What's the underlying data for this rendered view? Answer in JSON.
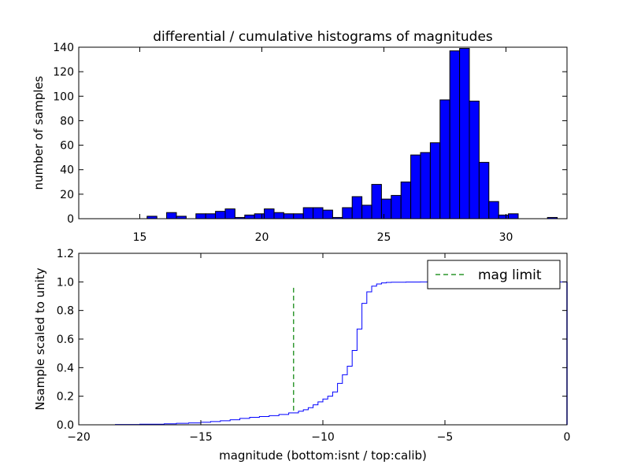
{
  "chart_data": [
    {
      "type": "bar",
      "subtype": "histogram",
      "title": "differential / cumulative histograms of magnitudes",
      "xlabel": "",
      "ylabel": "number of samples",
      "xlim": [
        12.5,
        32.5
      ],
      "ylim": [
        0,
        140
      ],
      "xticks": [
        15,
        20,
        25,
        30
      ],
      "xtick_labels": [
        "15",
        "20",
        "25",
        "30"
      ],
      "yticks": [
        0,
        20,
        40,
        60,
        80,
        100,
        120,
        140
      ],
      "ytick_labels": [
        "0",
        "20",
        "40",
        "60",
        "80",
        "100",
        "120",
        "140"
      ],
      "x_ticklabel_position": "bottom",
      "bar_color": "#0000ff",
      "bin_start": 12.5,
      "bin_width": 0.4,
      "values": [
        0,
        0,
        0,
        0,
        0,
        0,
        0,
        2,
        0,
        5,
        2,
        0,
        4,
        4,
        6,
        8,
        1,
        3,
        4,
        8,
        5,
        4,
        4,
        9,
        9,
        7,
        1,
        9,
        18,
        11,
        28,
        16,
        19,
        30,
        52,
        54,
        62,
        97,
        137,
        139,
        96,
        46,
        14,
        3,
        4,
        0,
        0,
        0,
        1
      ]
    },
    {
      "type": "line",
      "subtype": "cumulative step",
      "title": "",
      "xlabel": "magnitude (bottom:isnt / top:calib)",
      "ylabel": "Nsample scaled to unity",
      "xlim": [
        -20,
        0
      ],
      "ylim": [
        0,
        1.2
      ],
      "xticks": [
        -20,
        -15,
        -10,
        -5,
        0
      ],
      "xtick_labels": [
        "−20",
        "−15",
        "−10",
        "−5",
        "0"
      ],
      "yticks": [
        0,
        0.2,
        0.4,
        0.6,
        0.8,
        1.0,
        1.2
      ],
      "ytick_labels": [
        "0.0",
        "0.2",
        "0.4",
        "0.6",
        "0.8",
        "1.0",
        "1.2"
      ],
      "series": [
        {
          "color": "#0000ff",
          "step": true,
          "x": [
            -20,
            -18.5,
            -17.5,
            -16.5,
            -16,
            -15.5,
            -15,
            -14.6,
            -14.2,
            -13.8,
            -13.4,
            -13,
            -12.6,
            -12.2,
            -11.8,
            -11.4,
            -11.0,
            -10.8,
            -10.6,
            -10.4,
            -10.2,
            -10.0,
            -9.8,
            -9.6,
            -9.4,
            -9.2,
            -9.0,
            -8.8,
            -8.6,
            -8.4,
            -8.2,
            -8.0,
            -7.8,
            -7.6,
            -7.4,
            -7.2,
            -6.6,
            -6.0,
            -5.0,
            0
          ],
          "y": [
            0.0,
            0.002,
            0.004,
            0.007,
            0.01,
            0.013,
            0.018,
            0.023,
            0.028,
            0.035,
            0.045,
            0.052,
            0.058,
            0.064,
            0.072,
            0.083,
            0.095,
            0.105,
            0.12,
            0.14,
            0.16,
            0.18,
            0.2,
            0.23,
            0.29,
            0.35,
            0.41,
            0.52,
            0.67,
            0.85,
            0.93,
            0.97,
            0.985,
            0.993,
            0.996,
            0.998,
            0.999,
            1.0,
            1.0,
            1.0
          ]
        },
        {
          "name": "mag limit",
          "color": "#008000",
          "linestyle": "dashed",
          "x": [
            -11.2,
            -11.2
          ],
          "y": [
            0.1,
            0.97
          ]
        }
      ],
      "legend": {
        "position": "upper right",
        "entries": [
          "mag limit"
        ]
      }
    }
  ]
}
